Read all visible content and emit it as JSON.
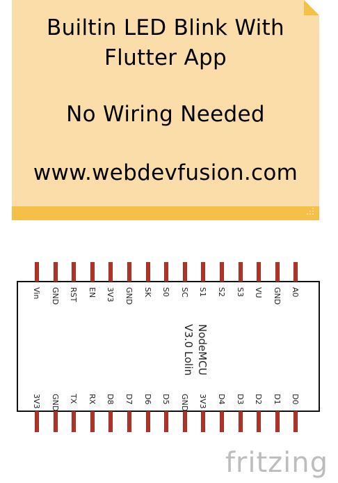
{
  "note": {
    "line1": "Builtin LED Blink With",
    "line2": "Flutter App",
    "line3": "No Wiring Needed",
    "line4": "www.webdevfusion.com",
    "fill_color": "#fbdda9",
    "border_color": "#f5c048"
  },
  "board": {
    "name_line1": "NodeMCU",
    "name_line2": "V3.0 Lolin",
    "top_pins": [
      "Vin",
      "GND",
      "RST",
      "EN",
      "3V3",
      "GND",
      "SK",
      "S0",
      "SC",
      "S1",
      "S2",
      "S3",
      "VU",
      "GND",
      "A0"
    ],
    "bottom_pins": [
      "3V3",
      "GND",
      "TX",
      "RX",
      "D8",
      "D7",
      "D6",
      "D5",
      "GND",
      "3V3",
      "D4",
      "D3",
      "D2",
      "D1",
      "D0"
    ],
    "pin_color": "#c0392b"
  },
  "watermark": "fritzing"
}
